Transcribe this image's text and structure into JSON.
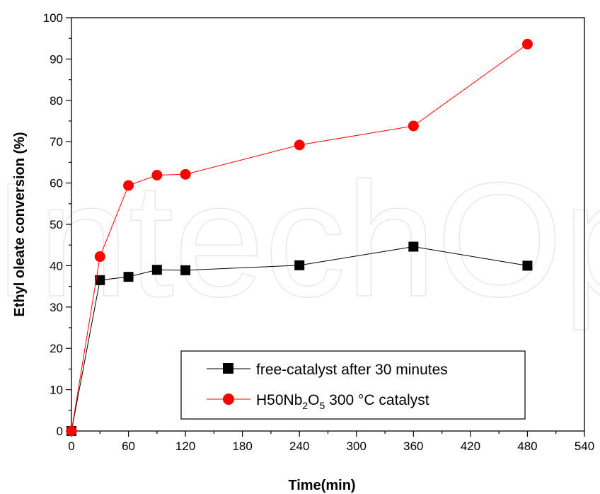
{
  "chart_data": {
    "type": "line",
    "xlabel": "Time(min)",
    "ylabel": "Ethyl oleate conversion (%)",
    "xlim": [
      0,
      540
    ],
    "ylim": [
      0,
      100
    ],
    "xticks": [
      0,
      60,
      120,
      180,
      240,
      300,
      360,
      420,
      480,
      540
    ],
    "yticks": [
      0,
      10,
      20,
      30,
      40,
      50,
      60,
      70,
      80,
      90,
      100
    ],
    "grid": false,
    "legend_position": "bottom-right",
    "watermark": "IntechOpen",
    "series": [
      {
        "name": "free-catalyst after 30 minutes",
        "marker": "square",
        "color": "#000000",
        "x": [
          0,
          30,
          60,
          90,
          120,
          240,
          360,
          480
        ],
        "y": [
          0,
          36.5,
          37.3,
          39.0,
          38.9,
          40.1,
          44.6,
          40.0
        ]
      },
      {
        "name": "H50Nb2O5 300 °C catalyst",
        "name_parts": {
          "pre": "H50Nb",
          "sub1": "2",
          "mid": "O",
          "sub2": "5",
          "post": " 300 °C catalyst"
        },
        "marker": "circle",
        "color": "#ff0000",
        "x": [
          0,
          30,
          60,
          90,
          120,
          240,
          360,
          480
        ],
        "y": [
          0,
          42.2,
          59.4,
          61.9,
          62.1,
          69.2,
          73.8,
          93.6
        ]
      }
    ]
  }
}
